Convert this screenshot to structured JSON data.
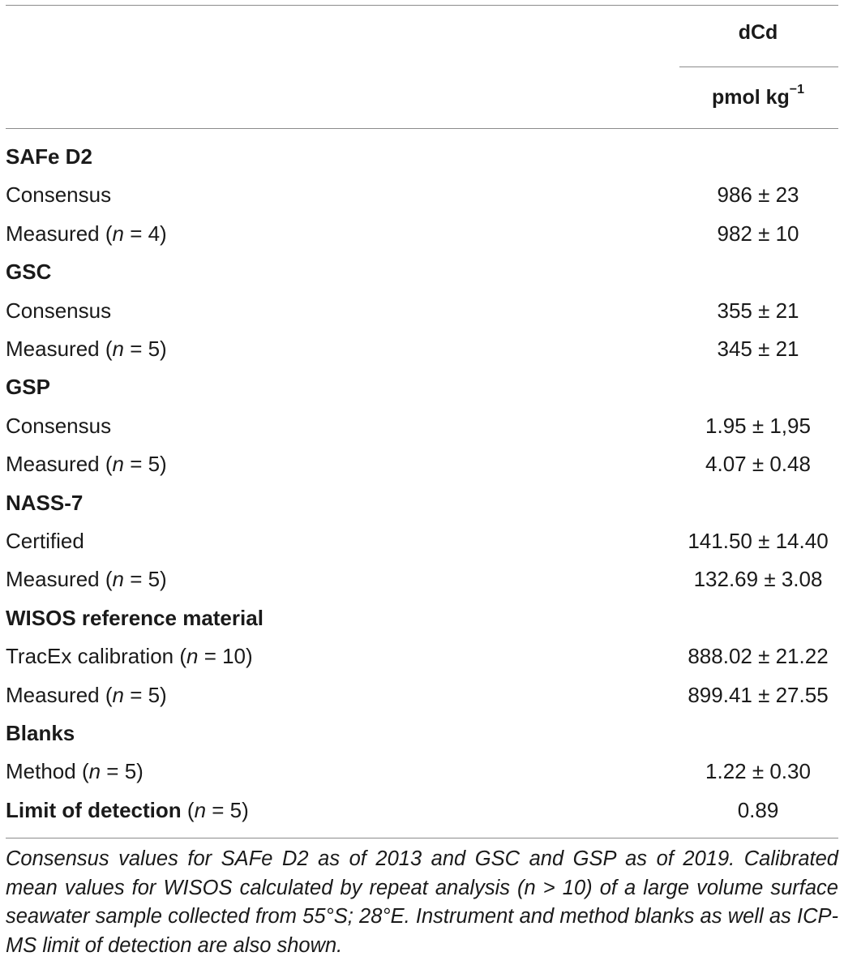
{
  "header": {
    "column_title": "dCd",
    "unit_base": "pmol kg",
    "unit_exponent": "−1"
  },
  "rows": [
    {
      "type": "section",
      "label": "SAFe D2"
    },
    {
      "type": "data",
      "label": "Consensus",
      "value": "986 ± 23"
    },
    {
      "type": "data",
      "label_pre": "Measured (",
      "label_var": "n",
      "label_post": " = 4)",
      "value": "982 ± 10"
    },
    {
      "type": "section",
      "label": "GSC"
    },
    {
      "type": "data",
      "label": "Consensus",
      "value": "355 ± 21"
    },
    {
      "type": "data",
      "label_pre": "Measured (",
      "label_var": "n",
      "label_post": " = 5)",
      "value": "345 ± 21"
    },
    {
      "type": "section",
      "label": "GSP"
    },
    {
      "type": "data",
      "label": "Consensus",
      "value": "1.95 ± 1,95"
    },
    {
      "type": "data",
      "label_pre": "Measured (",
      "label_var": "n",
      "label_post": " = 5)",
      "value": "4.07 ± 0.48"
    },
    {
      "type": "section",
      "label": "NASS-7"
    },
    {
      "type": "data",
      "label": "Certified",
      "value": "141.50 ± 14.40"
    },
    {
      "type": "data",
      "label_pre": "Measured (",
      "label_var": "n",
      "label_post": " = 5)",
      "value": "132.69 ± 3.08"
    },
    {
      "type": "section",
      "label": "WISOS reference material"
    },
    {
      "type": "data",
      "label_pre": "TracEx calibration (",
      "label_var": "n",
      "label_post": " = 10)",
      "value": "888.02 ± 21.22"
    },
    {
      "type": "data",
      "label_pre": "Measured (",
      "label_var": "n",
      "label_post": " = 5)",
      "value": "899.41 ± 27.55"
    },
    {
      "type": "section",
      "label": "Blanks"
    },
    {
      "type": "data",
      "label_pre": "Method (",
      "label_var": "n",
      "label_post": " = 5)",
      "value": "1.22 ± 0.30"
    },
    {
      "type": "data_bold",
      "label_bold": "Limit of detection",
      "label_pre": " (",
      "label_var": "n",
      "label_post": " = 5)",
      "value": "0.89"
    }
  ],
  "footnote": "Consensus values for SAFe D2 as of 2013 and GSC and GSP as of 2019. Calibrated mean values for WISOS calculated by repeat analysis (n > 10) of a large volume surface seawater sample collected from 55°S; 28°E. Instrument and method blanks as well as ICP-MS limit of detection are also shown."
}
